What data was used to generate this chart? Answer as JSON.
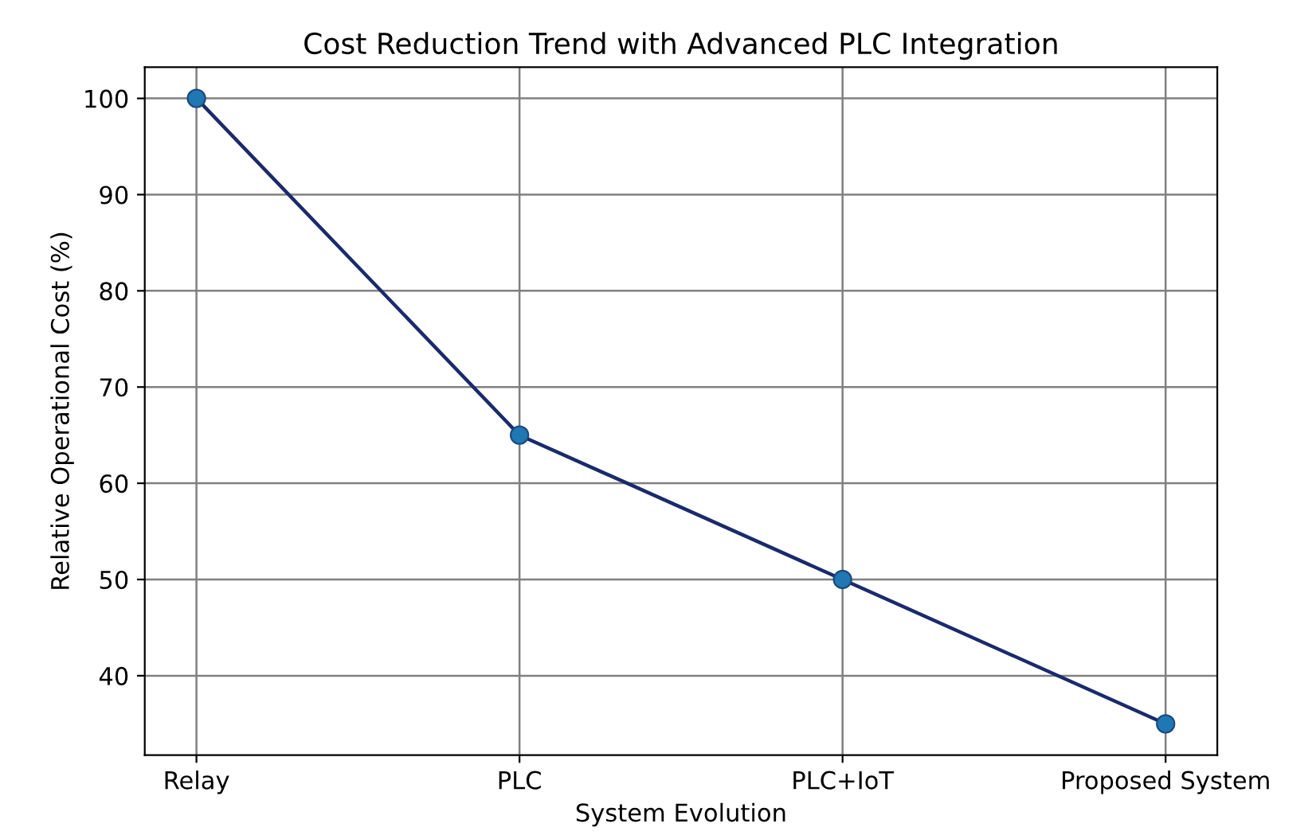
{
  "chart_data": {
    "type": "line",
    "title": "Cost Reduction Trend with Advanced PLC Integration",
    "xlabel": "System Evolution",
    "ylabel": "Relative Operational Cost (%)",
    "categories": [
      "Relay",
      "PLC",
      "PLC+IoT",
      "Proposed System"
    ],
    "series": [
      {
        "color": "#1a2a6c",
        "values": [
          100,
          65,
          50,
          35
        ]
      }
    ],
    "ylim": [
      31.75,
      103.25
    ],
    "yticks": [
      40,
      50,
      60,
      70,
      80,
      90,
      100
    ],
    "grid": true,
    "marker": "circle",
    "line_style": "solid"
  }
}
